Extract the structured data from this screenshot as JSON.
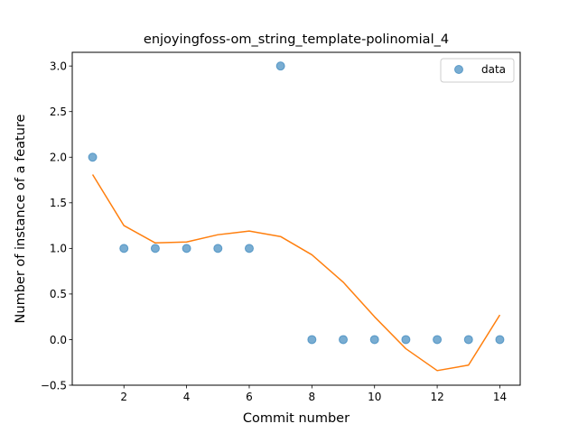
{
  "chart_data": {
    "type": "scatter",
    "title": "enjoyingfoss-om_string_template-polinomial_4",
    "xlabel": "Commit number",
    "ylabel": "Number of instance of a feature",
    "xlim": [
      0.35,
      14.65
    ],
    "ylim": [
      -0.5,
      3.15
    ],
    "xticks": [
      2,
      4,
      6,
      8,
      10,
      12,
      14
    ],
    "yticks": [
      -0.5,
      0.0,
      0.5,
      1.0,
      1.5,
      2.0,
      2.5,
      3.0
    ],
    "ytick_labels": [
      "−0.5",
      "0.0",
      "0.5",
      "1.0",
      "1.5",
      "2.0",
      "2.5",
      "3.0"
    ],
    "legend_position": "upper right",
    "grid": false,
    "series": [
      {
        "name": "data",
        "kind": "scatter",
        "color": "#1f77b4",
        "x": [
          1,
          2,
          3,
          4,
          5,
          6,
          7,
          8,
          9,
          10,
          11,
          12,
          13,
          14
        ],
        "y": [
          2,
          1,
          1,
          1,
          1,
          1,
          3,
          0,
          0,
          0,
          0,
          0,
          0,
          0
        ]
      },
      {
        "kind": "line",
        "color": "#ff7f0e",
        "x": [
          1,
          2,
          3,
          4,
          5,
          6,
          7,
          8,
          9,
          10,
          11,
          12,
          13,
          14
        ],
        "y": [
          1.81,
          1.25,
          1.06,
          1.07,
          1.15,
          1.19,
          1.13,
          0.93,
          0.63,
          0.25,
          -0.1,
          -0.34,
          -0.28,
          0.27
        ]
      }
    ]
  }
}
